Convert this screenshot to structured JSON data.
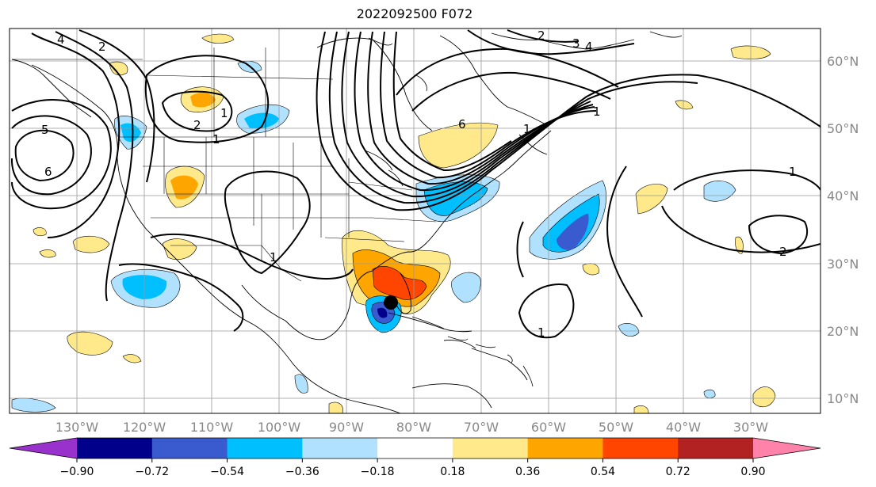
{
  "title": "2022092500 F072",
  "map": {
    "projection": "PlateCarree",
    "lon_range": [
      -138,
      -18
    ],
    "lat_range": [
      8,
      65
    ],
    "gridlines": true,
    "storm_marker": {
      "lon": -84.3,
      "lat": 24.5,
      "color": "#000000"
    }
  },
  "axes": {
    "x_ticks": [
      "130°W",
      "120°W",
      "110°W",
      "100°W",
      "90°W",
      "80°W",
      "70°W",
      "60°W",
      "50°W",
      "40°W",
      "30°W"
    ],
    "y_ticks": [
      "60°N",
      "50°N",
      "40°N",
      "30°N",
      "20°N",
      "10°N"
    ]
  },
  "colorbar": {
    "colors": [
      "#9932cc",
      "#00008b",
      "#3a5ad0",
      "#00bfff",
      "#b0e2ff",
      "#ffffff",
      "#ffe98a",
      "#ffa500",
      "#ff4500",
      "#b22222",
      "#ff82ab"
    ],
    "tick_labels": [
      "−0.90",
      "−0.72",
      "−0.54",
      "−0.36",
      "−0.18",
      "0.18",
      "0.36",
      "0.54",
      "0.72",
      "0.90"
    ]
  },
  "contour_labels": [
    "4",
    "2",
    "2",
    "3",
    "4",
    "2",
    "5",
    "6",
    "1",
    "6",
    "1",
    "1",
    "1",
    "1",
    "2",
    "1",
    "1"
  ]
}
